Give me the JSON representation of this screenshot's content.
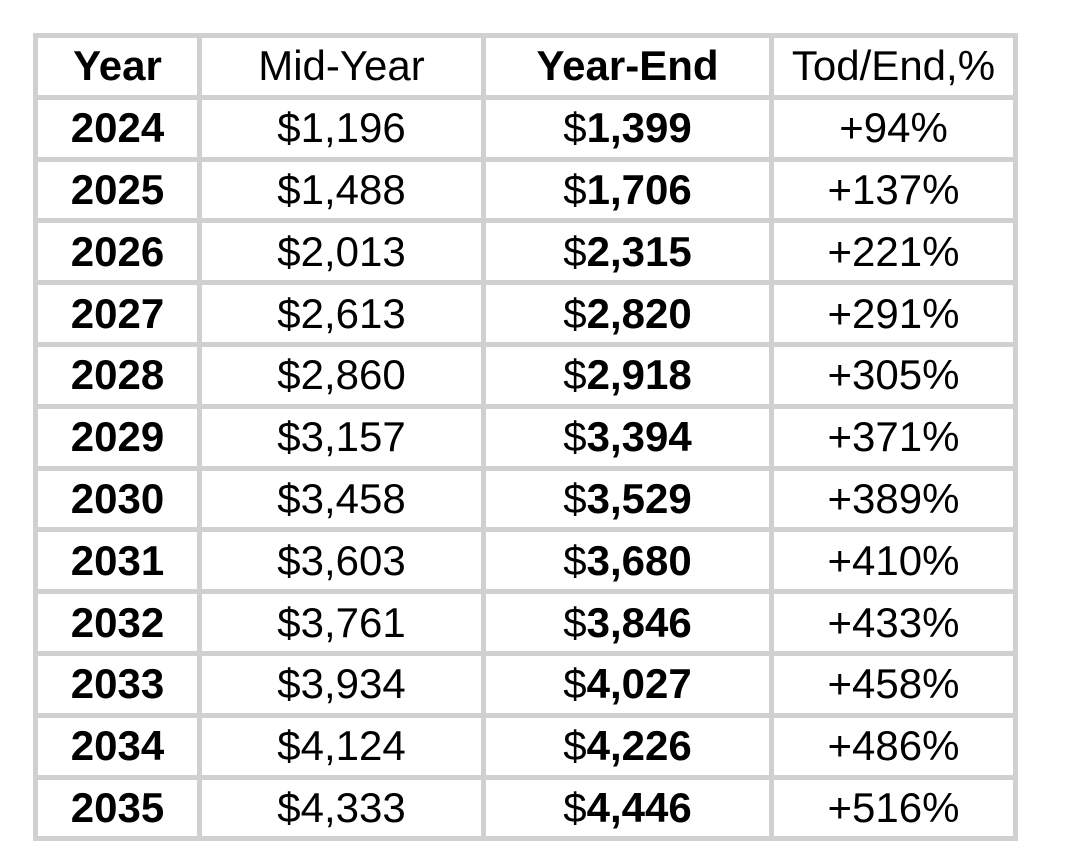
{
  "colors": {
    "border": "#d0d0d0",
    "background": "#ffffff",
    "text": "#000000"
  },
  "table": {
    "columns": [
      {
        "label": "Year"
      },
      {
        "label": "Mid-Year"
      },
      {
        "label": "Year-End"
      },
      {
        "label": "Tod/End,%"
      }
    ],
    "rows": [
      {
        "year": "2024",
        "mid_year": "$1,196",
        "year_end": "$1,399",
        "tod_end_pct": "+94%"
      },
      {
        "year": "2025",
        "mid_year": "$1,488",
        "year_end": "$1,706",
        "tod_end_pct": "+137%"
      },
      {
        "year": "2026",
        "mid_year": "$2,013",
        "year_end": "$2,315",
        "tod_end_pct": "+221%"
      },
      {
        "year": "2027",
        "mid_year": "$2,613",
        "year_end": "$2,820",
        "tod_end_pct": "+291%"
      },
      {
        "year": "2028",
        "mid_year": "$2,860",
        "year_end": "$2,918",
        "tod_end_pct": "+305%"
      },
      {
        "year": "2029",
        "mid_year": "$3,157",
        "year_end": "$3,394",
        "tod_end_pct": "+371%"
      },
      {
        "year": "2030",
        "mid_year": "$3,458",
        "year_end": "$3,529",
        "tod_end_pct": "+389%"
      },
      {
        "year": "2031",
        "mid_year": "$3,603",
        "year_end": "$3,680",
        "tod_end_pct": "+410%"
      },
      {
        "year": "2032",
        "mid_year": "$3,761",
        "year_end": "$3,846",
        "tod_end_pct": "+433%"
      },
      {
        "year": "2033",
        "mid_year": "$3,934",
        "year_end": "$4,027",
        "tod_end_pct": "+458%"
      },
      {
        "year": "2034",
        "mid_year": "$4,124",
        "year_end": "$4,226",
        "tod_end_pct": "+486%"
      },
      {
        "year": "2035",
        "mid_year": "$4,333",
        "year_end": "$4,446",
        "tod_end_pct": "+516%"
      }
    ]
  },
  "chart_data": {
    "type": "table",
    "title": "",
    "columns": [
      "Year",
      "Mid-Year",
      "Year-End",
      "Tod/End,%"
    ],
    "categories": [
      "2024",
      "2025",
      "2026",
      "2027",
      "2028",
      "2029",
      "2030",
      "2031",
      "2032",
      "2033",
      "2034",
      "2035"
    ],
    "series": [
      {
        "name": "Mid-Year",
        "values": [
          1196,
          1488,
          2013,
          2613,
          2860,
          3157,
          3458,
          3603,
          3761,
          3934,
          4124,
          4333
        ]
      },
      {
        "name": "Year-End",
        "values": [
          1399,
          1706,
          2315,
          2820,
          2918,
          3394,
          3529,
          3680,
          3846,
          4027,
          4226,
          4446
        ]
      },
      {
        "name": "Tod/End,%",
        "values": [
          94,
          137,
          221,
          291,
          305,
          371,
          389,
          410,
          433,
          458,
          486,
          516
        ]
      }
    ]
  }
}
